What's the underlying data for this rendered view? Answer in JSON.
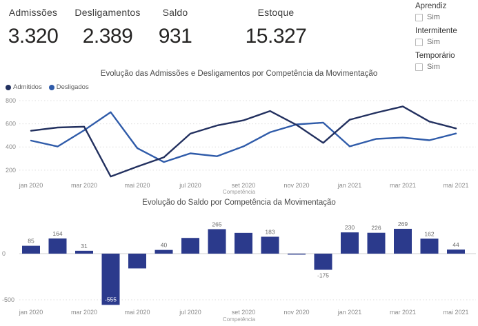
{
  "kpis": [
    {
      "label": "Admissões",
      "value": "3.320"
    },
    {
      "label": "Desligamentos",
      "value": "2.389"
    },
    {
      "label": "Saldo",
      "value": "931"
    },
    {
      "label": "Estoque",
      "value": "15.327"
    }
  ],
  "slicers": [
    {
      "title": "Aprendiz",
      "option": "Sim",
      "checked": false
    },
    {
      "title": "Intermitente",
      "option": "Sim",
      "checked": false
    },
    {
      "title": "Temporário",
      "option": "Sim",
      "checked": false
    }
  ],
  "colors": {
    "admitidos": "#22305F",
    "desligados": "#2F5BA9",
    "bar": "#2B3A8C",
    "grid": "#dcdcdc",
    "axis_text": "#8a8a8a",
    "data_label": "#6a6a6a"
  },
  "chart_data": [
    {
      "type": "line",
      "title": "Evolução das Admissões e Desligamentos por Competência da Movimentação",
      "xlabel": "Competência",
      "ylabel": "",
      "x": [
        "jan 2020",
        "fev 2020",
        "mar 2020",
        "abr 2020",
        "mai 2020",
        "jun 2020",
        "jul 2020",
        "ago 2020",
        "set 2020",
        "out 2020",
        "nov 2020",
        "dez 2020",
        "jan 2021",
        "fev 2021",
        "mar 2021",
        "abr 2021",
        "mai 2021"
      ],
      "x_tick_shown_every": 2,
      "series": [
        {
          "name": "Admitidos",
          "color": "#22305F",
          "values": [
            540,
            568,
            575,
            145,
            230,
            310,
            515,
            585,
            630,
            710,
            590,
            435,
            635,
            696,
            750,
            620,
            560
          ]
        },
        {
          "name": "Desligados",
          "color": "#2F5BA9",
          "values": [
            455,
            404,
            544,
            700,
            390,
            270,
            345,
            320,
            405,
            527,
            595,
            610,
            405,
            470,
            481,
            458,
            516
          ]
        }
      ],
      "yticks": [
        200,
        400,
        600,
        800
      ],
      "ylim": [
        130,
        800
      ],
      "grid": "dotted-horizontal",
      "legend_position": "top-left"
    },
    {
      "type": "bar",
      "title": "Evolução do Saldo por Competência da Movimentação",
      "xlabel": "Competência",
      "ylabel": "",
      "categories": [
        "jan 2020",
        "fev 2020",
        "mar 2020",
        "abr 2020",
        "mai 2020",
        "jun 2020",
        "jul 2020",
        "ago 2020",
        "set 2020",
        "out 2020",
        "nov 2020",
        "dez 2020",
        "jan 2021",
        "fev 2021",
        "mar 2021",
        "abr 2021",
        "mai 2021"
      ],
      "values": [
        85,
        164,
        31,
        -555,
        -160,
        40,
        170,
        265,
        225,
        183,
        -5,
        -175,
        230,
        226,
        269,
        162,
        44
      ],
      "data_labels": [
        "85",
        "164",
        "31",
        "-555",
        null,
        "40",
        null,
        "265",
        null,
        "183",
        null,
        "-175",
        "230",
        "226",
        "269",
        "162",
        "44"
      ],
      "inside_label_indices": [
        3
      ],
      "x_tick_shown_every": 2,
      "bar_color": "#2B3A8C",
      "yticks": [
        0,
        -500
      ],
      "ylim": [
        -600,
        500
      ]
    }
  ]
}
